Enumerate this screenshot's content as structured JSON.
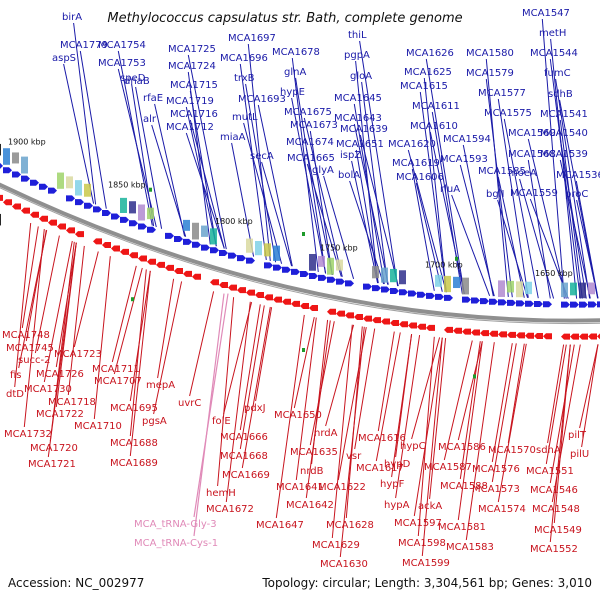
{
  "title": "Methylococcus capsulatus str. Bath, complete genome",
  "footer": {
    "accession": "Accession: NC_002977",
    "summary": "Topology: circular; Length: 3,304,561 bp; Genes: 3,010"
  },
  "ticks": [
    "1900 kbp",
    "1850 kbp",
    "1800 kbp",
    "1750 kbp",
    "1700 kbp",
    "1650 kbp"
  ],
  "colors": {
    "forward": "#1a1aa8",
    "reverse": "#c8141e",
    "trna": "#e08ab8",
    "backbone": "#8f8f8f"
  },
  "forward_labels": [
    "birA",
    "MCA1779",
    "aspS",
    "MCA1754",
    "MCA1753",
    "speD",
    "dnaB",
    "rfaE",
    "alr",
    "MCA1725",
    "MCA1724",
    "MCA1715",
    "MCA1719",
    "MCA1716",
    "MCA1712",
    "MCA1697",
    "MCA1696",
    "trxB",
    "MCA1693",
    "mutL",
    "miaA",
    "MCA1678",
    "glnA",
    "hypE",
    "MCA1675",
    "MCA1673",
    "MCA1674",
    "secA",
    "MCA1665",
    "thiL",
    "pgpA",
    "gloA",
    "MCA1645",
    "MCA1643",
    "MCA1639",
    "MCA1651",
    "ispZ",
    "glyA",
    "bolA",
    "MCA1626",
    "MCA1625",
    "MCA1615",
    "MCA1611",
    "MCA1610",
    "MCA1620",
    "MCA1619",
    "MCA1606",
    "MCA1594",
    "MCA1593",
    "rluA",
    "MCA1580",
    "MCA1579",
    "MCA1577",
    "MCA1575",
    "MCA1569",
    "MCA1568",
    "MCA1585",
    "bglI",
    "moeA",
    "MCA1559",
    "MCA1547",
    "metH",
    "MCA1544",
    "fumC",
    "sdhB",
    "MCA1541",
    "MCA1540",
    "MCA1539",
    "MCA1536",
    "proC"
  ],
  "reverse_labels": [
    "MCA1748",
    "MCA1745",
    "succ-2",
    "fis",
    "dtD",
    "MCA1726",
    "MCA1723",
    "MCA1730",
    "MCA1718",
    "MCA1722",
    "MCA1711",
    "MCA1707",
    "MCA1710",
    "MCA1732",
    "MCA1720",
    "MCA1721",
    "mepA",
    "MCA1695",
    "uvrC",
    "pgsA",
    "MCA1688",
    "MCA1689",
    "MCA1672",
    "folE",
    "pdxJ",
    "MCA1666",
    "MCA1668",
    "MCA1669",
    "hemH",
    "MCA1650",
    "MCA1635",
    "nrdA",
    "nrdB",
    "MCA1641",
    "MCA1642",
    "MCA1647",
    "MCA1616",
    "vsr",
    "MCA1617",
    "MCA1622",
    "MCA1628",
    "MCA1629",
    "MCA1630",
    "hypC",
    "hypD",
    "hypF",
    "hypA",
    "MCA1597",
    "MCA1598",
    "MCA1599",
    "MCA1586",
    "MCA1587",
    "ackA",
    "MCA1588",
    "MCA1581",
    "MCA1583",
    "MCA1570",
    "MCA1576",
    "MCA1573",
    "MCA1574",
    "sdhA",
    "MCA1551",
    "MCA1546",
    "MCA1548",
    "MCA1549",
    "MCA1552",
    "pilT",
    "pilU"
  ],
  "trna_labels": [
    "MCA_tRNA-Gly-3",
    "MCA_tRNA-Cys-1"
  ]
}
